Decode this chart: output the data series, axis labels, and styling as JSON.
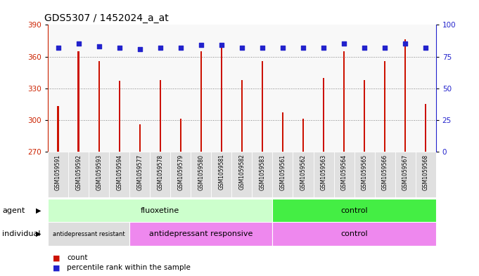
{
  "title": "GDS5307 / 1452024_a_at",
  "samples": [
    "GSM1059591",
    "GSM1059592",
    "GSM1059593",
    "GSM1059594",
    "GSM1059577",
    "GSM1059578",
    "GSM1059579",
    "GSM1059580",
    "GSM1059581",
    "GSM1059582",
    "GSM1059583",
    "GSM1059561",
    "GSM1059562",
    "GSM1059563",
    "GSM1059564",
    "GSM1059565",
    "GSM1059566",
    "GSM1059567",
    "GSM1059568"
  ],
  "counts": [
    313,
    365,
    356,
    337,
    296,
    338,
    301,
    365,
    370,
    338,
    356,
    307,
    301,
    340,
    365,
    338,
    356,
    376,
    315
  ],
  "percentiles": [
    82,
    85,
    83,
    82,
    81,
    82,
    82,
    84,
    84,
    82,
    82,
    82,
    82,
    82,
    85,
    82,
    82,
    85,
    82
  ],
  "agent_groups": [
    {
      "label": "fluoxetine",
      "start": 0,
      "end": 10,
      "color": "#ccffcc"
    },
    {
      "label": "control",
      "start": 11,
      "end": 18,
      "color": "#44ee44"
    }
  ],
  "individual_groups": [
    {
      "label": "antidepressant resistant",
      "start": 0,
      "end": 3,
      "color": "#dddddd"
    },
    {
      "label": "antidepressant responsive",
      "start": 4,
      "end": 10,
      "color": "#ee88ee"
    },
    {
      "label": "control",
      "start": 11,
      "end": 18,
      "color": "#ee88ee"
    }
  ],
  "ylim_left": [
    270,
    390
  ],
  "ylim_right": [
    0,
    100
  ],
  "yticks_left": [
    270,
    300,
    330,
    360,
    390
  ],
  "yticks_right": [
    0,
    25,
    50,
    75,
    100
  ],
  "bar_color": "#cc1100",
  "dot_color": "#2222cc",
  "bar_width": 0.08,
  "legend_count_color": "#cc1100",
  "legend_dot_color": "#2222cc",
  "plot_bg": "#f8f8f8",
  "cell_bg": "#e0e0e0"
}
